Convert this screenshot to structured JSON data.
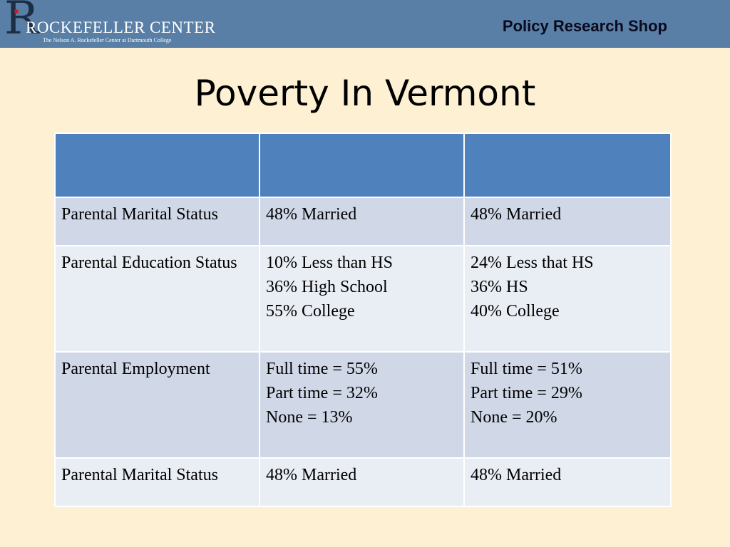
{
  "header": {
    "logo_letter": "R",
    "logo_name": "ROCKEFELLER CENTER",
    "logo_subtitle": "The Nelson A. Rockefeller Center at Dartmouth College",
    "shop_label": "Policy Research Shop"
  },
  "title": "Poverty In Vermont",
  "table": {
    "header_cells": [
      "",
      "",
      ""
    ],
    "rows": [
      {
        "label": "Parental Marital Status",
        "col2": "48% Married",
        "col3": "48% Married"
      },
      {
        "label": "Parental Education Status",
        "col2": "10% Less than HS\n36% High School\n55% College",
        "col3": "24% Less that HS\n36% HS\n40% College"
      },
      {
        "label": "Parental Employment",
        "col2": "Full time = 55%\nPart time = 32%\nNone = 13%",
        "col3": "Full time = 51%\nPart time = 29%\nNone = 20%"
      },
      {
        "label": "Parental Marital Status",
        "col2": "48% Married",
        "col3": "48% Married"
      }
    ]
  },
  "colors": {
    "background": "#fdf0d3",
    "header_bar": "#5a7fa6",
    "table_header": "#4f81bd",
    "row_band_dark": "#d0d8e8",
    "row_band_light": "#e9edf4"
  }
}
